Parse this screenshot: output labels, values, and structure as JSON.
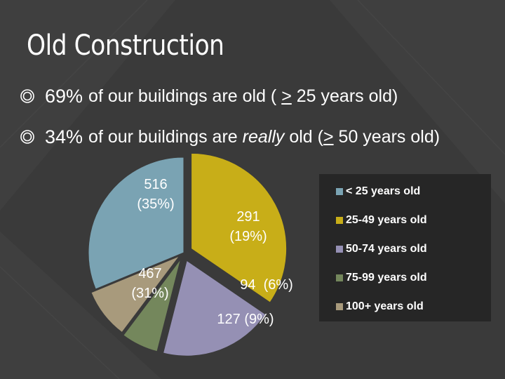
{
  "slide": {
    "title": "Old Construction",
    "bullets": [
      {
        "pct": "69%",
        "pre": "of our buildings are old ( ",
        "ge": ">",
        "post": " 25 years old)"
      },
      {
        "pct": "34%",
        "pre": "of our buildings are ",
        "em": "really",
        "mid": " old (",
        "ge": ">",
        "post": " 50 years old)"
      }
    ]
  },
  "colors": {
    "background": "#3a3a3a",
    "bullet_icon": "#ffffff"
  },
  "chart_data": {
    "type": "pie",
    "title": "",
    "legend_position": "right",
    "slices": [
      {
        "name": "< 25 years old",
        "value": 467,
        "percent_label": "(31%)",
        "color": "#7aa3b3"
      },
      {
        "name": "25-49 years old",
        "value": 516,
        "percent_label": "(35%)",
        "color": "#c8ae18"
      },
      {
        "name": "50-74 years old",
        "value": 291,
        "percent_label": "(19%)",
        "color": "#9590b4"
      },
      {
        "name": "75-99 years old",
        "value": 94,
        "percent_label": "(6%)",
        "color": "#74875c"
      },
      {
        "name": "100+ years old",
        "value": 127,
        "percent_label": "(9%)",
        "color": "#a89a7c"
      }
    ]
  }
}
